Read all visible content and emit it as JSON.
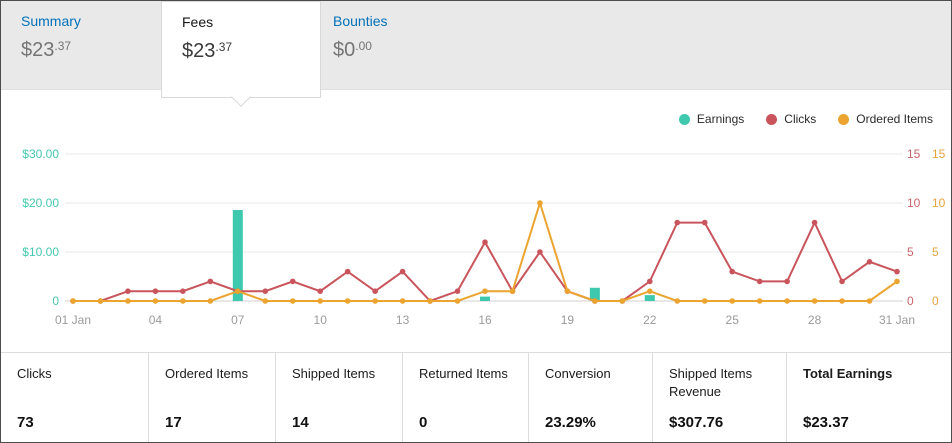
{
  "tabs": {
    "summary": {
      "label": "Summary",
      "whole": "$23",
      "cents": ".37"
    },
    "fees": {
      "label": "Fees",
      "whole": "$23",
      "cents": ".37"
    },
    "bounties": {
      "label": "Bounties",
      "whole": "$0",
      "cents": ".00"
    }
  },
  "chart_data": {
    "type": "combo",
    "x_count": 31,
    "x_ticks": [
      {
        "index": 0,
        "label": "01 Jan"
      },
      {
        "index": 3,
        "label": "04"
      },
      {
        "index": 6,
        "label": "07"
      },
      {
        "index": 9,
        "label": "10"
      },
      {
        "index": 12,
        "label": "13"
      },
      {
        "index": 15,
        "label": "16"
      },
      {
        "index": 18,
        "label": "19"
      },
      {
        "index": 21,
        "label": "22"
      },
      {
        "index": 24,
        "label": "25"
      },
      {
        "index": 27,
        "label": "28"
      },
      {
        "index": 30,
        "label": "31 Jan"
      }
    ],
    "left_axis": {
      "name": "Earnings ($)",
      "max": 30,
      "color": "#45c8b0",
      "ticks": [
        {
          "value": 30,
          "label": "$30.00"
        },
        {
          "value": 20,
          "label": "$20.00"
        },
        {
          "value": 10,
          "label": "$10.00"
        },
        {
          "value": 0,
          "label": "0"
        }
      ]
    },
    "right_axes": [
      {
        "name": "Clicks",
        "max": 15,
        "color": "#c9646c",
        "ticks": [
          {
            "value": 15,
            "label": "15"
          },
          {
            "value": 10,
            "label": "10"
          },
          {
            "value": 5,
            "label": "5"
          },
          {
            "value": 0,
            "label": "0"
          }
        ]
      },
      {
        "name": "Ordered Items",
        "max": 15,
        "color": "#e5a33d",
        "ticks": [
          {
            "value": 15,
            "label": "15"
          },
          {
            "value": 10,
            "label": "10"
          },
          {
            "value": 5,
            "label": "5"
          },
          {
            "value": 0,
            "label": "0"
          }
        ]
      }
    ],
    "series": [
      {
        "name": "Earnings",
        "type": "bar",
        "axis": "left",
        "color": "#3ec8ae",
        "values": [
          0,
          0,
          0,
          0,
          0,
          0,
          18.57,
          0,
          0,
          0,
          0,
          0,
          0,
          0,
          0,
          0.9,
          0,
          0,
          0,
          2.7,
          0,
          1.2,
          0,
          0,
          0,
          0,
          0,
          0,
          0,
          0,
          0
        ]
      },
      {
        "name": "Clicks",
        "type": "line",
        "axis": "right",
        "color": "#c9545c",
        "values": [
          0,
          0,
          1,
          1,
          1,
          2,
          1,
          1,
          2,
          1,
          3,
          1,
          3,
          0,
          1,
          6,
          1,
          5,
          1,
          0,
          0,
          2,
          8,
          8,
          3,
          2,
          2,
          8,
          2,
          4,
          3
        ]
      },
      {
        "name": "Ordered Items",
        "type": "line",
        "axis": "right",
        "color": "#eba42f",
        "values": [
          0,
          0,
          0,
          0,
          0,
          0,
          1,
          0,
          0,
          0,
          0,
          0,
          0,
          0,
          0,
          1,
          1,
          10,
          1,
          0,
          0,
          1,
          0,
          0,
          0,
          0,
          0,
          0,
          0,
          0,
          2
        ]
      }
    ]
  },
  "summary_table": {
    "columns": [
      {
        "label": "Clicks",
        "value": "73"
      },
      {
        "label": "Ordered Items",
        "value": "17"
      },
      {
        "label": "Shipped Items",
        "value": "14"
      },
      {
        "label": "Returned Items",
        "value": "0"
      },
      {
        "label": "Conversion",
        "value": "23.29%"
      },
      {
        "label": "Shipped Items Revenue",
        "value": "$307.76"
      },
      {
        "label": "Total Earnings",
        "value": "$23.37"
      }
    ]
  }
}
